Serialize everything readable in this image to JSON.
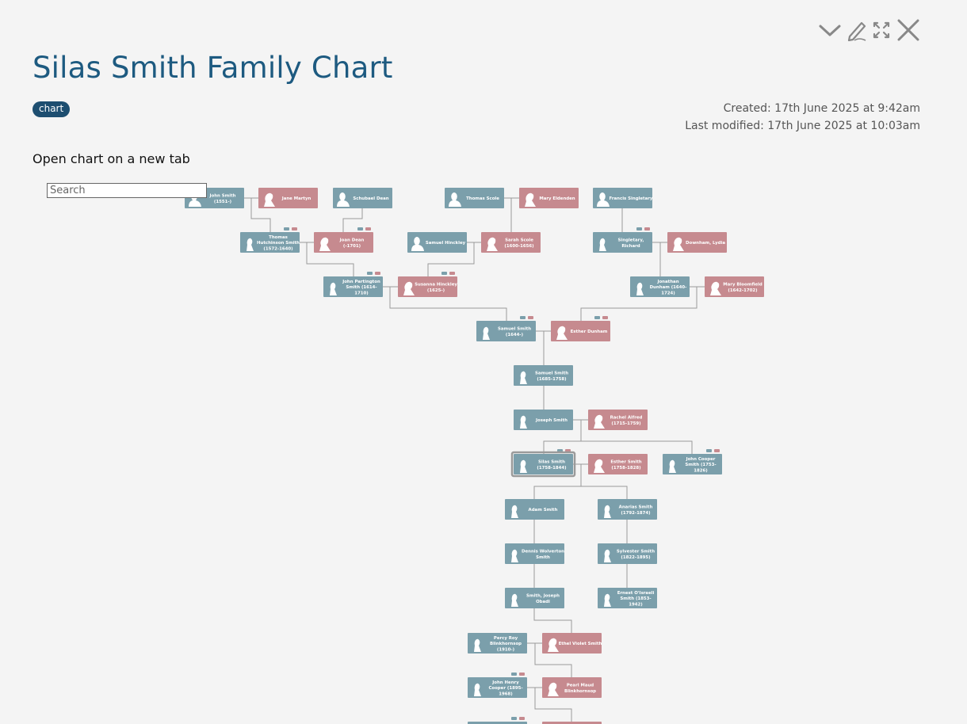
{
  "page": {
    "title": "Silas Smith Family Chart",
    "tag": "chart",
    "created": "Created: 17th June 2025 at 9:42am",
    "modified": "Last modified: 17th June 2025 at 10:03am",
    "open_link": "Open chart on a new tab"
  },
  "toolbar": {
    "icons": [
      "chevron-down-icon",
      "pencil-icon",
      "fullscreen-icon",
      "close-icon"
    ]
  },
  "search": {
    "placeholder": "Search"
  },
  "colors": {
    "male": "#7b9fab",
    "female": "#c68a8f",
    "title": "#1d5a80",
    "tag": "#1d4e70",
    "line": "#9a9a9a"
  },
  "tree": {
    "people": [
      {
        "id": "p1",
        "sex": "M",
        "l1": "John Smith",
        "l2": "(1551-)"
      },
      {
        "id": "p2",
        "sex": "F",
        "l1": "Jane Martyn",
        "l2": ""
      },
      {
        "id": "p3",
        "sex": "M",
        "l1": "Schubael Dean",
        "l2": ""
      },
      {
        "id": "p4",
        "sex": "M",
        "l1": "Thomas Scole",
        "l2": ""
      },
      {
        "id": "p5",
        "sex": "F",
        "l1": "Mary Eldenden",
        "l2": ""
      },
      {
        "id": "p6",
        "sex": "M",
        "l1": "Francis Singletary",
        "l2": ""
      },
      {
        "id": "p7",
        "sex": "M",
        "l1": "Thomas",
        "l2": "Hutchinson Smith",
        "l3": "(1572-1640)"
      },
      {
        "id": "p8",
        "sex": "F",
        "l1": "Joan Dean",
        "l2": "(-1701)"
      },
      {
        "id": "p9",
        "sex": "M",
        "l1": "Samuel Hinckley",
        "l2": ""
      },
      {
        "id": "p10",
        "sex": "F",
        "l1": "Sarah Scole",
        "l2": "(1600-1656)"
      },
      {
        "id": "p11",
        "sex": "M",
        "l1": "Singletary,",
        "l2": "Richard"
      },
      {
        "id": "p12",
        "sex": "F",
        "l1": "Downham, Lydia",
        "l2": ""
      },
      {
        "id": "p13",
        "sex": "M",
        "l1": "John Partington",
        "l2": "Smith (1614-",
        "l3": "1710)"
      },
      {
        "id": "p14",
        "sex": "F",
        "l1": "Susanna Hinckley",
        "l2": "(1625-)"
      },
      {
        "id": "p15",
        "sex": "M",
        "l1": "Jonathan",
        "l2": "Dunham (1640-",
        "l3": "1724)"
      },
      {
        "id": "p16",
        "sex": "F",
        "l1": "Mary Bloomfield",
        "l2": "(1642-1702)"
      },
      {
        "id": "p17",
        "sex": "M",
        "l1": "Samuel Smith",
        "l2": "(1644-)"
      },
      {
        "id": "p18",
        "sex": "F",
        "l1": "Esther Dunham",
        "l2": ""
      },
      {
        "id": "p19",
        "sex": "M",
        "l1": "Samuel Smith",
        "l2": "(1685-1758)"
      },
      {
        "id": "p20",
        "sex": "M",
        "l1": "Joseph Smith",
        "l2": ""
      },
      {
        "id": "p21",
        "sex": "F",
        "l1": "Rachel Alfred",
        "l2": "(1715-1759)"
      },
      {
        "id": "p22",
        "sex": "M",
        "l1": "Silas Smith",
        "l2": "(1758-1844)"
      },
      {
        "id": "p23",
        "sex": "F",
        "l1": "Esther Smith",
        "l2": "(1758-1828)"
      },
      {
        "id": "p24",
        "sex": "M",
        "l1": "John Cooper",
        "l2": "Smith (1753-",
        "l3": "1826)"
      },
      {
        "id": "p25",
        "sex": "M",
        "l1": "Adam Smith",
        "l2": ""
      },
      {
        "id": "p26",
        "sex": "M",
        "l1": "Anarias Smith",
        "l2": "(1792-1874)"
      },
      {
        "id": "p27",
        "sex": "M",
        "l1": "Dennis Wolverton",
        "l2": "Smith"
      },
      {
        "id": "p28",
        "sex": "M",
        "l1": "Sylvester Smith",
        "l2": "(1822-1895)"
      },
      {
        "id": "p29",
        "sex": "M",
        "l1": "Smith, Joseph",
        "l2": "Obadi"
      },
      {
        "id": "p30",
        "sex": "M",
        "l1": "Ernest O'Israeli",
        "l2": "Smith (1853-",
        "l3": "1942)"
      },
      {
        "id": "p31",
        "sex": "M",
        "l1": "Percy Roy",
        "l2": "Blinkhornsop",
        "l3": "(1910-)"
      },
      {
        "id": "p32",
        "sex": "F",
        "l1": "Ethel Violet Smith",
        "l2": ""
      },
      {
        "id": "p33",
        "sex": "M",
        "l1": "John Henry",
        "l2": "Cooper (1895-",
        "l3": "1968)"
      },
      {
        "id": "p34",
        "sex": "F",
        "l1": "Pearl Maud",
        "l2": "Blinkhornsop"
      },
      {
        "id": "p35",
        "sex": "M",
        "l1": "",
        "l2": ""
      },
      {
        "id": "p36",
        "sex": "F",
        "l1": "",
        "l2": ""
      }
    ],
    "focus_id": "p22"
  }
}
